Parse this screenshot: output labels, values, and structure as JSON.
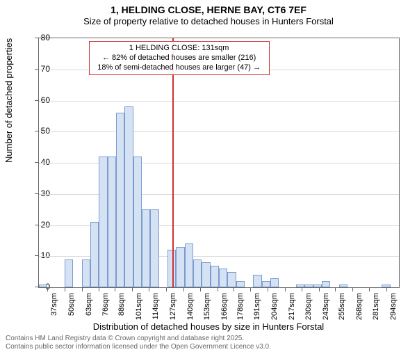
{
  "title": "1, HELDING CLOSE, HERNE BAY, CT6 7EF",
  "subtitle": "Size of property relative to detached houses in Hunters Forstal",
  "y_axis_label": "Number of detached properties",
  "x_axis_label": "Distribution of detached houses by size in Hunters Forstal",
  "chart": {
    "type": "histogram",
    "bar_fill": "#d5e2f4",
    "bar_stroke": "#7a9bd0",
    "grid_color": "#d8d8d8",
    "background_color": "#ffffff",
    "ylim": [
      0,
      80
    ],
    "yticks": [
      0,
      10,
      20,
      30,
      40,
      50,
      60,
      70,
      80
    ],
    "x_start": 30,
    "x_bin_width": 6.5,
    "xticks": [
      37,
      50,
      63,
      76,
      88,
      101,
      114,
      127,
      140,
      153,
      166,
      178,
      191,
      204,
      217,
      230,
      243,
      255,
      268,
      281,
      294
    ],
    "xtick_labels": [
      "37sqm",
      "50sqm",
      "63sqm",
      "76sqm",
      "88sqm",
      "101sqm",
      "114sqm",
      "127sqm",
      "140sqm",
      "153sqm",
      "166sqm",
      "178sqm",
      "191sqm",
      "204sqm",
      "217sqm",
      "230sqm",
      "243sqm",
      "255sqm",
      "268sqm",
      "281sqm",
      "294sqm"
    ],
    "bars": [
      1,
      0,
      0,
      9,
      0,
      9,
      21,
      42,
      42,
      56,
      58,
      42,
      25,
      25,
      0,
      12,
      13,
      14,
      9,
      8,
      7,
      6,
      5,
      2,
      0,
      4,
      2,
      3,
      0,
      0,
      1,
      1,
      1,
      2,
      0,
      1,
      0,
      0,
      0,
      0,
      1,
      0
    ],
    "marker_value": 131,
    "marker_color": "#d03030",
    "annotation_border": "#d03030",
    "annotation": {
      "line1": "1 HELDING CLOSE: 131sqm",
      "line2": "← 82% of detached houses are smaller (216)",
      "line3": "18% of semi-detached houses are larger (47) →"
    }
  },
  "footer_line1": "Contains HM Land Registry data © Crown copyright and database right 2025.",
  "footer_line2": "Contains public sector information licensed under the Open Government Licence v3.0."
}
